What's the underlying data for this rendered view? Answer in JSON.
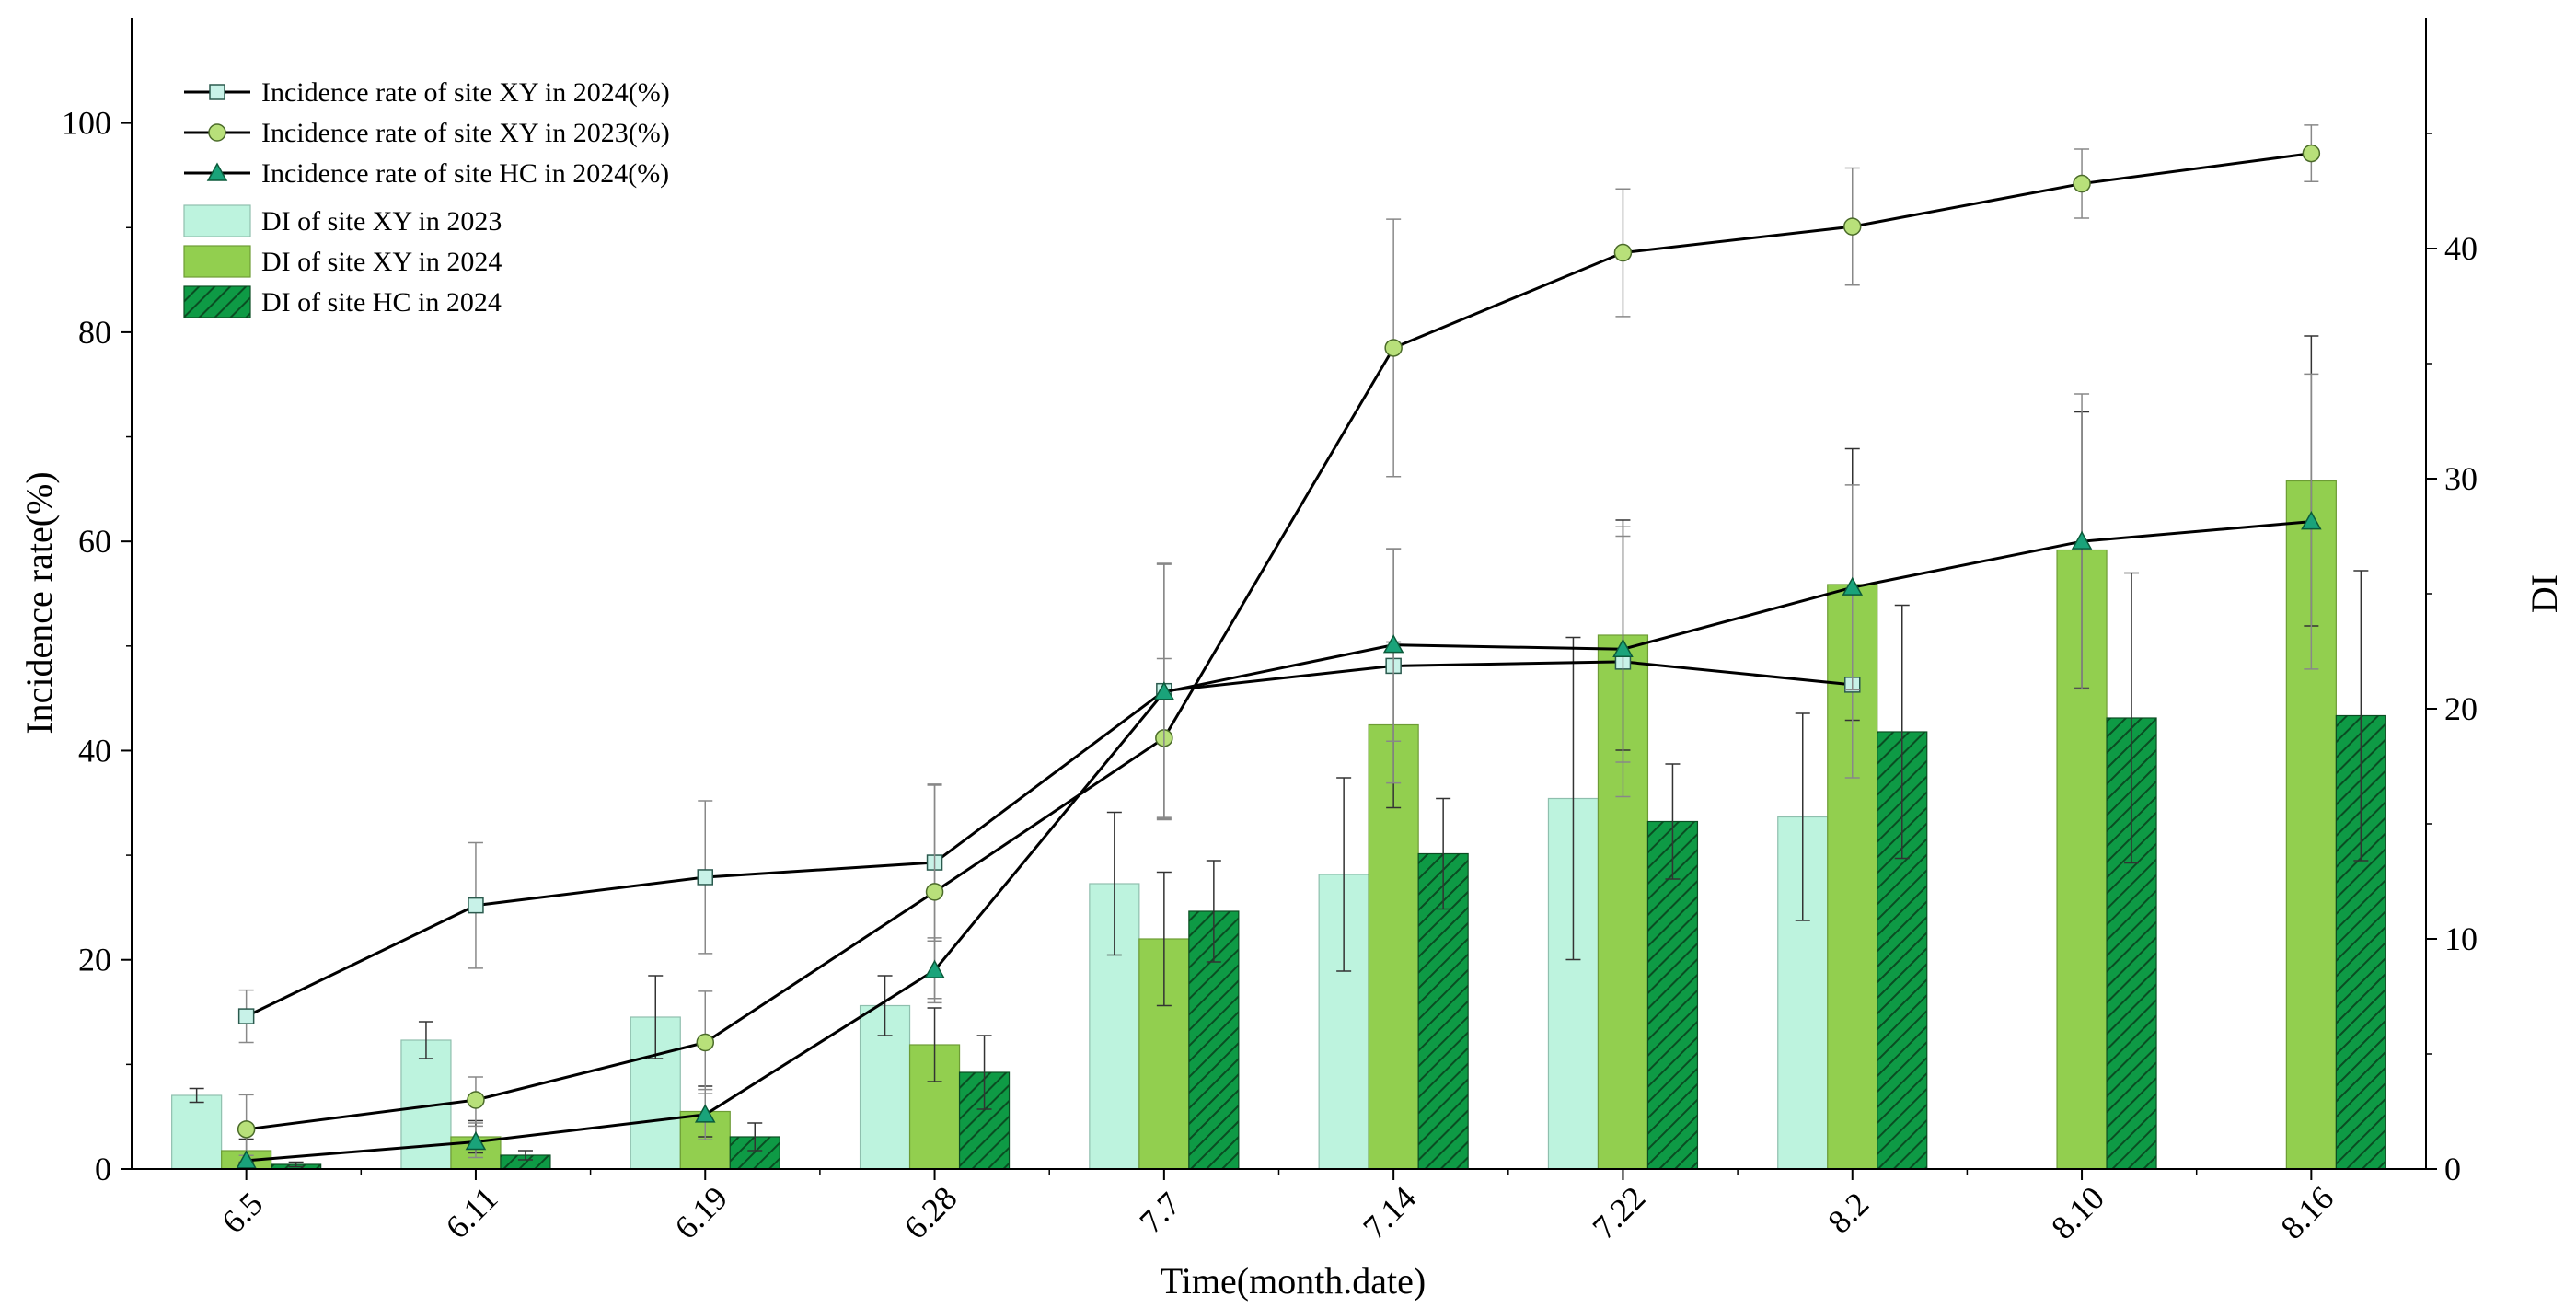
{
  "chart_data": {
    "type": "bar+line",
    "title": "",
    "xlabel": "Time(month.date)",
    "ylabel": "Incidence rate(%)",
    "y2label": "DI",
    "categories": [
      "6.5",
      "6.11",
      "6.19",
      "6.28",
      "7.7",
      "7.14",
      "7.22",
      "8.2",
      "8.10",
      "8.16"
    ],
    "ylim": [
      0,
      110
    ],
    "y2lim": [
      0,
      50
    ],
    "yticks": [
      0,
      20,
      40,
      60,
      80,
      100
    ],
    "y2ticks": [
      0,
      10,
      20,
      30,
      40
    ],
    "bar_series": [
      {
        "name": "DI of site XY in 2023",
        "color": "#bdf3de",
        "hatch": false,
        "values": [
          3.2,
          5.6,
          6.6,
          7.1,
          12.4,
          12.8,
          16.1,
          15.3,
          null,
          null
        ],
        "errors": [
          0.3,
          0.8,
          1.8,
          1.3,
          3.1,
          4.2,
          7.0,
          4.5,
          null,
          null
        ]
      },
      {
        "name": "DI of site XY in 2024",
        "color": "#92cf4f",
        "hatch": false,
        "values": [
          0.8,
          1.4,
          2.5,
          5.4,
          10.0,
          19.3,
          23.2,
          25.4,
          26.9,
          29.9
        ],
        "errors": [
          0.5,
          0.7,
          1.1,
          1.6,
          2.9,
          3.6,
          5.0,
          5.9,
          6.0,
          6.3
        ]
      },
      {
        "name": "DI of site HC in 2024",
        "color": "#0e9a45",
        "hatch": true,
        "values": [
          0.2,
          0.6,
          1.4,
          4.2,
          11.2,
          13.7,
          15.1,
          19.0,
          19.6,
          19.7
        ],
        "errors": [
          0.1,
          0.2,
          0.6,
          1.6,
          2.2,
          2.4,
          2.5,
          5.5,
          6.3,
          6.3
        ]
      }
    ],
    "line_series": [
      {
        "name": "Incidence rate of site XY in 2024(%)",
        "marker": "square",
        "marker_color": "#c8f2e8",
        "values": [
          14.6,
          25.2,
          27.9,
          29.3,
          45.7,
          48.1,
          48.5,
          46.3,
          null,
          null
        ],
        "errors": [
          2.5,
          6.0,
          7.3,
          7.5,
          12.2,
          11.2,
          12.9,
          8.9,
          null,
          null
        ]
      },
      {
        "name": "Incidence rate of site XY in 2023(%)",
        "marker": "circle",
        "marker_color": "#b8e07a",
        "values": [
          3.8,
          6.6,
          12.1,
          26.5,
          41.2,
          78.5,
          87.6,
          90.1,
          94.2,
          97.1
        ],
        "errors": [
          3.3,
          2.2,
          4.9,
          10.2,
          7.6,
          12.3,
          6.1,
          5.6,
          3.3,
          2.7
        ]
      },
      {
        "name": "Incidence rate of site HC in 2024(%)",
        "marker": "triangle",
        "marker_color": "#1aa37a",
        "values": [
          0.8,
          2.6,
          5.2,
          19.0,
          45.6,
          50.1,
          49.7,
          55.6,
          60.0,
          61.9
        ],
        "errors": [
          0.5,
          1.5,
          2.4,
          3.1,
          12.2,
          9.2,
          10.8,
          9.8,
          14.1,
          14.1
        ]
      }
    ],
    "legend_position": "top-left"
  }
}
